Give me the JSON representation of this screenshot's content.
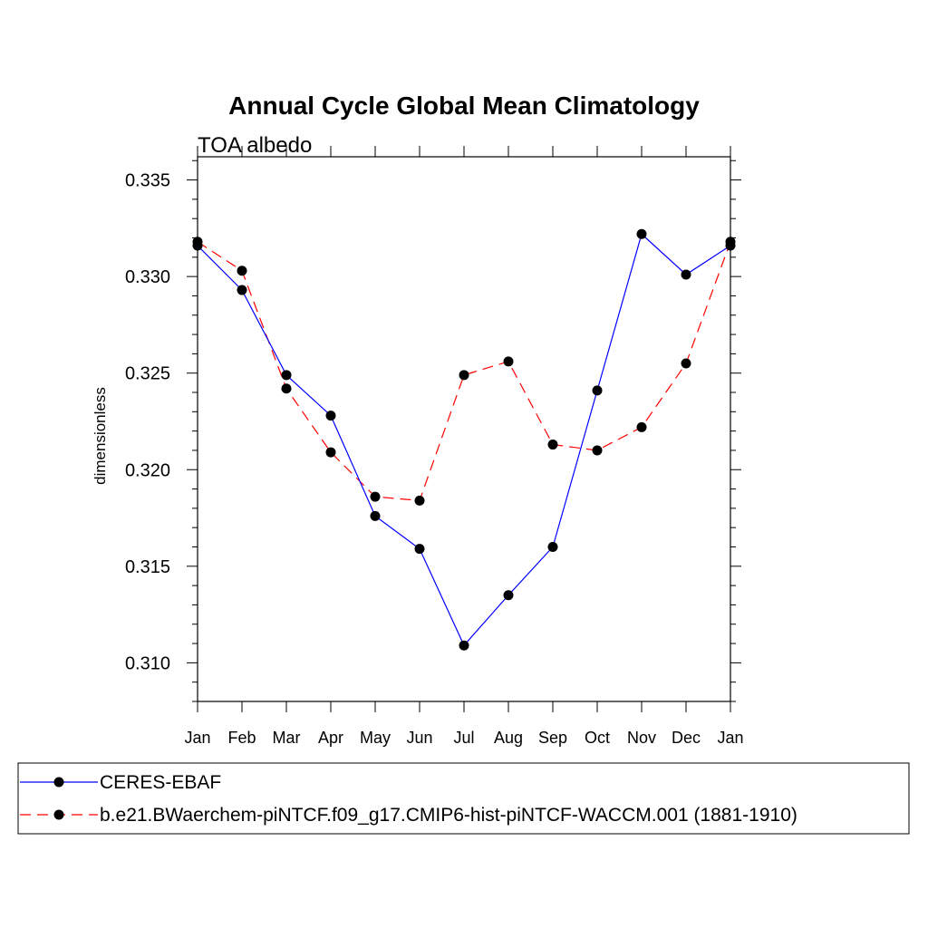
{
  "chart_data": {
    "type": "line",
    "title": "Annual Cycle Global Mean Climatology",
    "subtitle": "TOA albedo",
    "xlabel": "",
    "ylabel": "dimensionless",
    "categories": [
      "Jan",
      "Feb",
      "Mar",
      "Apr",
      "May",
      "Jun",
      "Jul",
      "Aug",
      "Sep",
      "Oct",
      "Nov",
      "Dec",
      "Jan"
    ],
    "ylim": [
      0.308,
      0.3362
    ],
    "yticks": [
      0.31,
      0.315,
      0.32,
      0.325,
      0.33,
      0.335
    ],
    "ytick_labels": [
      "0.310",
      "0.315",
      "0.320",
      "0.325",
      "0.330",
      "0.335"
    ],
    "grid": false,
    "legend_position": "bottom",
    "series": [
      {
        "name": "CERES-EBAF",
        "color": "#0000ff",
        "style": "solid",
        "marker": "filled-circle",
        "values": [
          0.3316,
          0.3293,
          0.3249,
          0.3228,
          0.3176,
          0.3159,
          0.3109,
          0.3135,
          0.316,
          0.3241,
          0.3322,
          0.3301,
          0.3316
        ]
      },
      {
        "name": "b.e21.BWaerchem-piNTCF.f09_g17.CMIP6-hist-piNTCF-WACCM.001 (1881-1910)",
        "color": "#ff0000",
        "style": "dashed",
        "marker": "filled-circle",
        "values": [
          0.3318,
          0.3303,
          0.3242,
          0.3209,
          0.3186,
          0.3184,
          0.3249,
          0.3256,
          0.3213,
          0.321,
          0.3222,
          0.3255,
          0.3318
        ]
      }
    ]
  }
}
